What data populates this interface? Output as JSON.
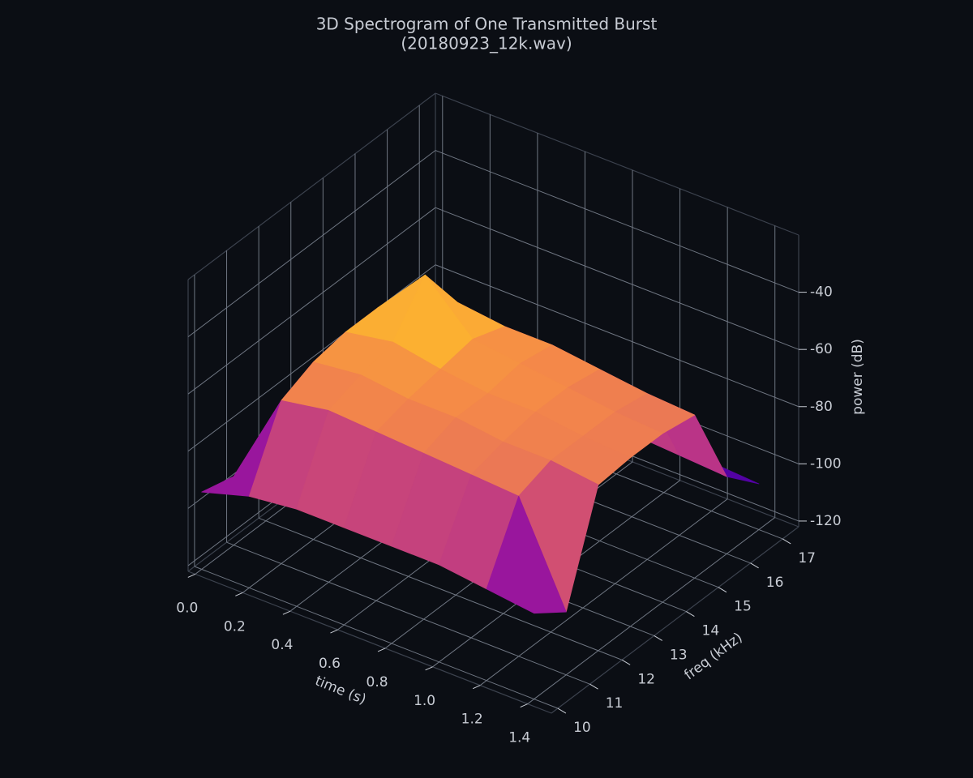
{
  "chart_data": {
    "type": "surface3d",
    "title": "3D Spectrogram of One Transmitted Burst",
    "subtitle": "(20180923_12k.wav)",
    "xlabel": "time (s)",
    "ylabel": "freq (kHz)",
    "zlabel": "power (dB)",
    "x": [
      0.0,
      0.2,
      0.4,
      0.6,
      0.8,
      1.0,
      1.2,
      1.4
    ],
    "y": [
      10,
      11,
      12,
      13,
      14,
      15,
      16,
      17
    ],
    "z": [
      [
        -95,
        -98,
        -100,
        -100,
        -100,
        -100,
        -105,
        -110
      ],
      [
        -90,
        -65,
        -60,
        -58,
        -58,
        -60,
        -95,
        -105
      ],
      [
        -88,
        -62,
        -58,
        -55,
        -40,
        -58,
        -92,
        -104
      ],
      [
        -88,
        -63,
        -60,
        -58,
        -56,
        -60,
        -92,
        -104
      ],
      [
        -88,
        -64,
        -60,
        -60,
        -58,
        -60,
        -93,
        -104
      ],
      [
        -88,
        -65,
        -62,
        -60,
        -60,
        -62,
        -93,
        -104
      ],
      [
        -90,
        -66,
        -62,
        -62,
        -62,
        -64,
        -94,
        -105
      ],
      [
        -92,
        -100,
        -64,
        -63,
        -63,
        -65,
        -95,
        -106
      ]
    ],
    "colormap": "plasma",
    "xlim": [
      -0.03,
      1.5
    ],
    "ylim": [
      9.8,
      17.5
    ],
    "zlim": [
      -122,
      -20
    ],
    "xticks": [
      {
        "value": 0,
        "label": "0.0"
      },
      0.2,
      0.4,
      0.6,
      0.8,
      {
        "value": 1,
        "label": "1.0"
      },
      1.2,
      1.4
    ],
    "yticks": [
      10,
      11,
      12,
      13,
      14,
      15,
      16,
      17
    ],
    "zticks": [
      -120,
      -100,
      -80,
      -60,
      -40
    ],
    "grid": true
  }
}
